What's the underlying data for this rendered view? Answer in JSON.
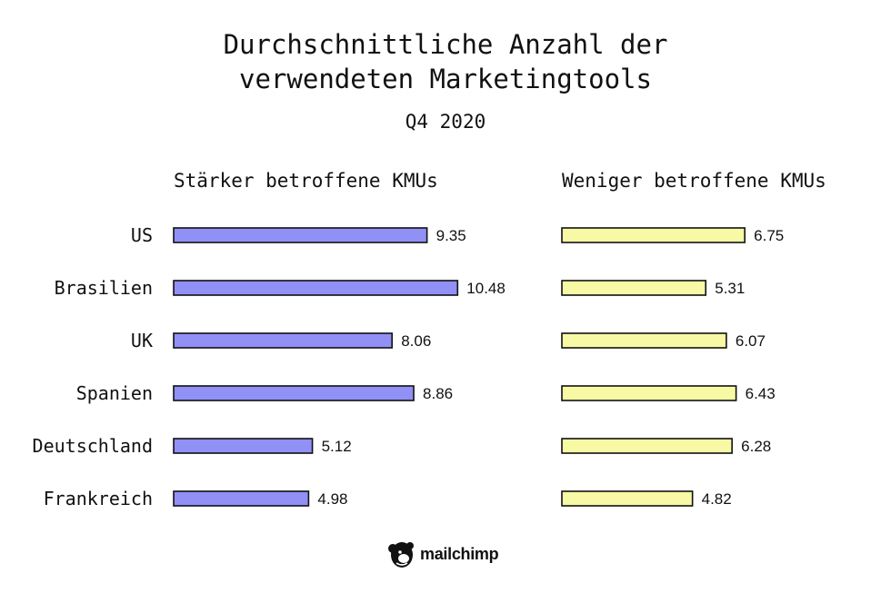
{
  "title_line1": "Durchschnittliche Anzahl der",
  "title_line2": "verwendeten Marketingtools",
  "subtitle": "Q4 2020",
  "brand": "mailchimp",
  "colors": {
    "series1": "#9090f5",
    "series2": "#f7f9a4",
    "stroke": "#111111"
  },
  "chart_data": {
    "type": "bar",
    "orientation": "horizontal",
    "title": "Durchschnittliche Anzahl der verwendeten Marketingtools",
    "subtitle": "Q4 2020",
    "categories": [
      "US",
      "Brasilien",
      "UK",
      "Spanien",
      "Deutschland",
      "Frankreich"
    ],
    "series": [
      {
        "name": "Stärker betroffene KMUs",
        "values": [
          9.35,
          10.48,
          8.06,
          8.86,
          5.12,
          4.98
        ]
      },
      {
        "name": "Weniger betroffene KMUs",
        "values": [
          6.75,
          5.31,
          6.07,
          6.43,
          6.28,
          4.82
        ]
      }
    ],
    "xlabel": "",
    "ylabel": "",
    "grid": false
  }
}
